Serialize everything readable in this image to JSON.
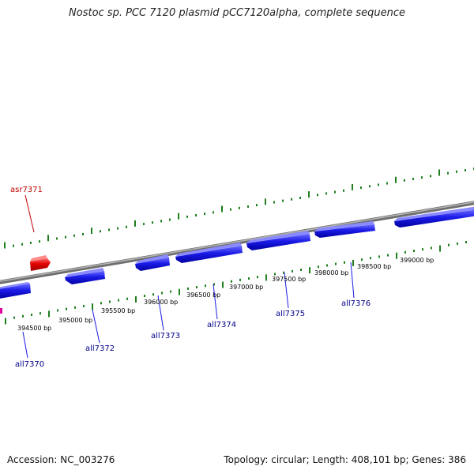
{
  "title": "Nostoc sp. PCC 7120 plasmid pCC7120alpha, complete sequence",
  "accession": "Accession: NC_003276",
  "summary": "Topology: circular; Length: 408,101 bp; Genes: 386",
  "colors": {
    "forward_gene": "#e00000",
    "reverse_gene": "#1a1ae6",
    "backbone": "#808080",
    "ticks": "#1f7f1f",
    "forward_label": "#c00000",
    "reverse_label": "#00008b"
  },
  "scale_labels": [
    "394500 bp",
    "395000 bp",
    "395500 bp",
    "396000 bp",
    "396500 bp",
    "397000 bp",
    "397500 bp",
    "398000 bp",
    "398500 bp",
    "399000 bp"
  ],
  "genes": [
    {
      "name": "asr7371",
      "strand": "+"
    },
    {
      "name": "all7370",
      "strand": "-"
    },
    {
      "name": "all7372",
      "strand": "-"
    },
    {
      "name": "all7373",
      "strand": "-"
    },
    {
      "name": "all7374",
      "strand": "-"
    },
    {
      "name": "all7375",
      "strand": "-"
    },
    {
      "name": "all7376",
      "strand": "-"
    }
  ]
}
